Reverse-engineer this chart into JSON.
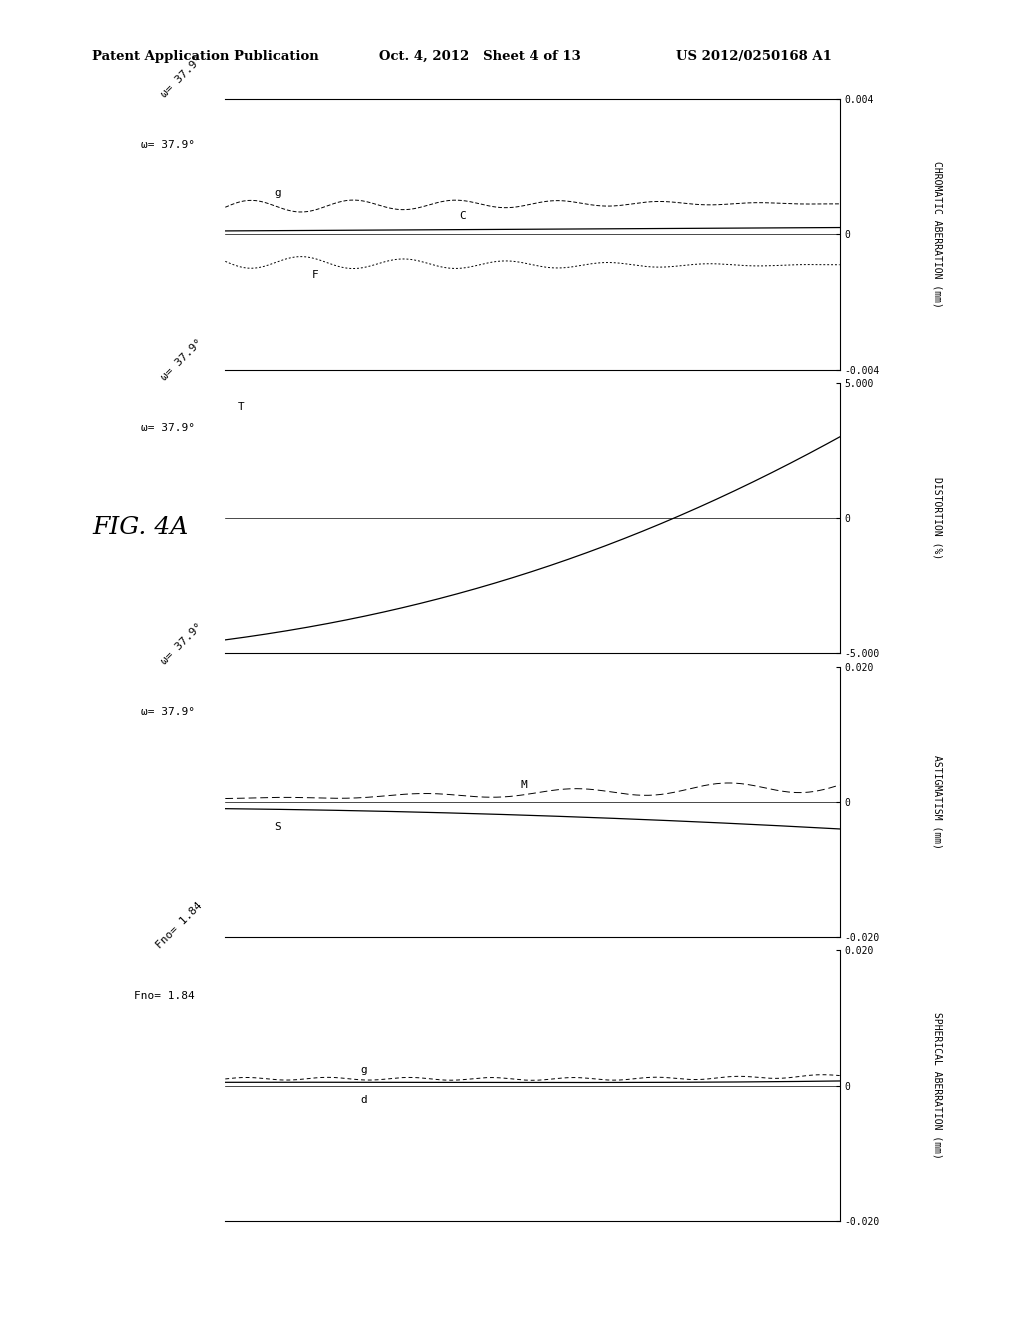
{
  "header_left": "Patent Application Publication",
  "header_mid": "Oct. 4, 2012   Sheet 4 of 13",
  "header_right": "US 2012/0250168 A1",
  "fig_label": "FIG. 4A",
  "background_color": "#ffffff",
  "plots": [
    {
      "title": "Fno= 1.84",
      "ylabel": "SPHERICAL ABERRATION (mm)",
      "ylim": [
        -0.02,
        0.02
      ],
      "yticks": [
        -0.02,
        0.0,
        0.02
      ],
      "ytick_labels": [
        "-0.020",
        "0",
        "0.020"
      ],
      "type": "spherical"
    },
    {
      "title": "ω= 37.9°",
      "ylabel": "ASTIGMATISM (mm)",
      "ylim": [
        -0.02,
        0.02
      ],
      "yticks": [
        -0.02,
        0.0,
        0.02
      ],
      "ytick_labels": [
        "-0.020",
        "0",
        "0.020"
      ],
      "type": "astigmatism"
    },
    {
      "title": "ω= 37.9°",
      "ylabel": "DISTORTION (%)",
      "ylim": [
        -5.0,
        5.0
      ],
      "yticks": [
        -5.0,
        0.0,
        5.0
      ],
      "ytick_labels": [
        "-5.000",
        "0",
        "5.000"
      ],
      "type": "distortion"
    },
    {
      "title": "ω= 37.9°",
      "ylabel": "CHROMATIC ABERRATION (mm)",
      "ylim": [
        -0.004,
        0.004
      ],
      "yticks": [
        -0.004,
        0.0,
        0.004
      ],
      "ytick_labels": [
        "-0.004",
        "0",
        "0.004"
      ],
      "type": "chromatic"
    }
  ]
}
